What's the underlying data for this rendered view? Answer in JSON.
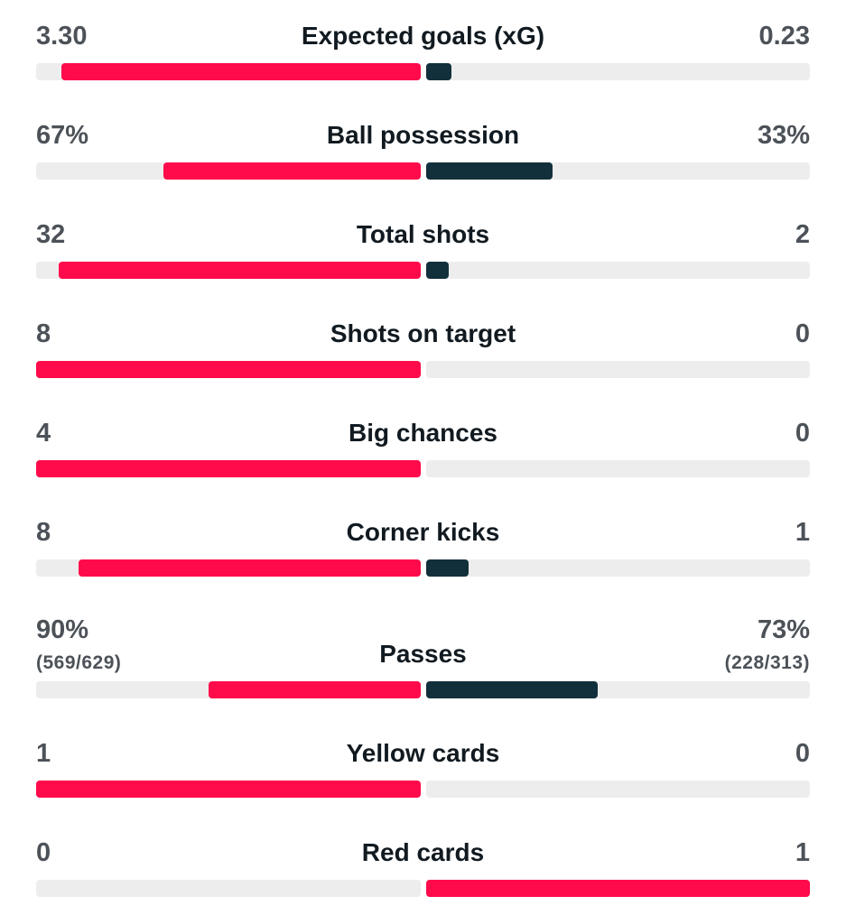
{
  "stats": [
    {
      "label": "Expected goals (xG)",
      "home": {
        "value": 3.3,
        "label": "3.30"
      },
      "away": {
        "value": 0.23,
        "label": "0.23"
      }
    },
    {
      "label": "Ball possession",
      "home": {
        "value": 67,
        "label": "67%"
      },
      "away": {
        "value": 33,
        "label": "33%"
      }
    },
    {
      "label": "Total shots",
      "home": {
        "value": 32,
        "label": "32"
      },
      "away": {
        "value": 2,
        "label": "2"
      }
    },
    {
      "label": "Shots on target",
      "home": {
        "value": 8,
        "label": "8"
      },
      "away": {
        "value": 0,
        "label": "0"
      }
    },
    {
      "label": "Big chances",
      "home": {
        "value": 4,
        "label": "4"
      },
      "away": {
        "value": 0,
        "label": "0"
      }
    },
    {
      "label": "Corner kicks",
      "home": {
        "value": 8,
        "label": "8"
      },
      "away": {
        "value": 1,
        "label": "1"
      }
    },
    {
      "label": "Passes",
      "home": {
        "value": 90,
        "label": "90%",
        "detail": "(569/629)"
      },
      "away": {
        "value": 73,
        "label": "73%",
        "detail": "(228/313)"
      }
    },
    {
      "label": "Yellow cards",
      "home": {
        "value": 1,
        "label": "1"
      },
      "away": {
        "value": 0,
        "label": "0"
      }
    },
    {
      "label": "Red cards",
      "home": {
        "value": 0,
        "label": "0"
      },
      "away": {
        "value": 1,
        "label": "1"
      }
    }
  ]
}
